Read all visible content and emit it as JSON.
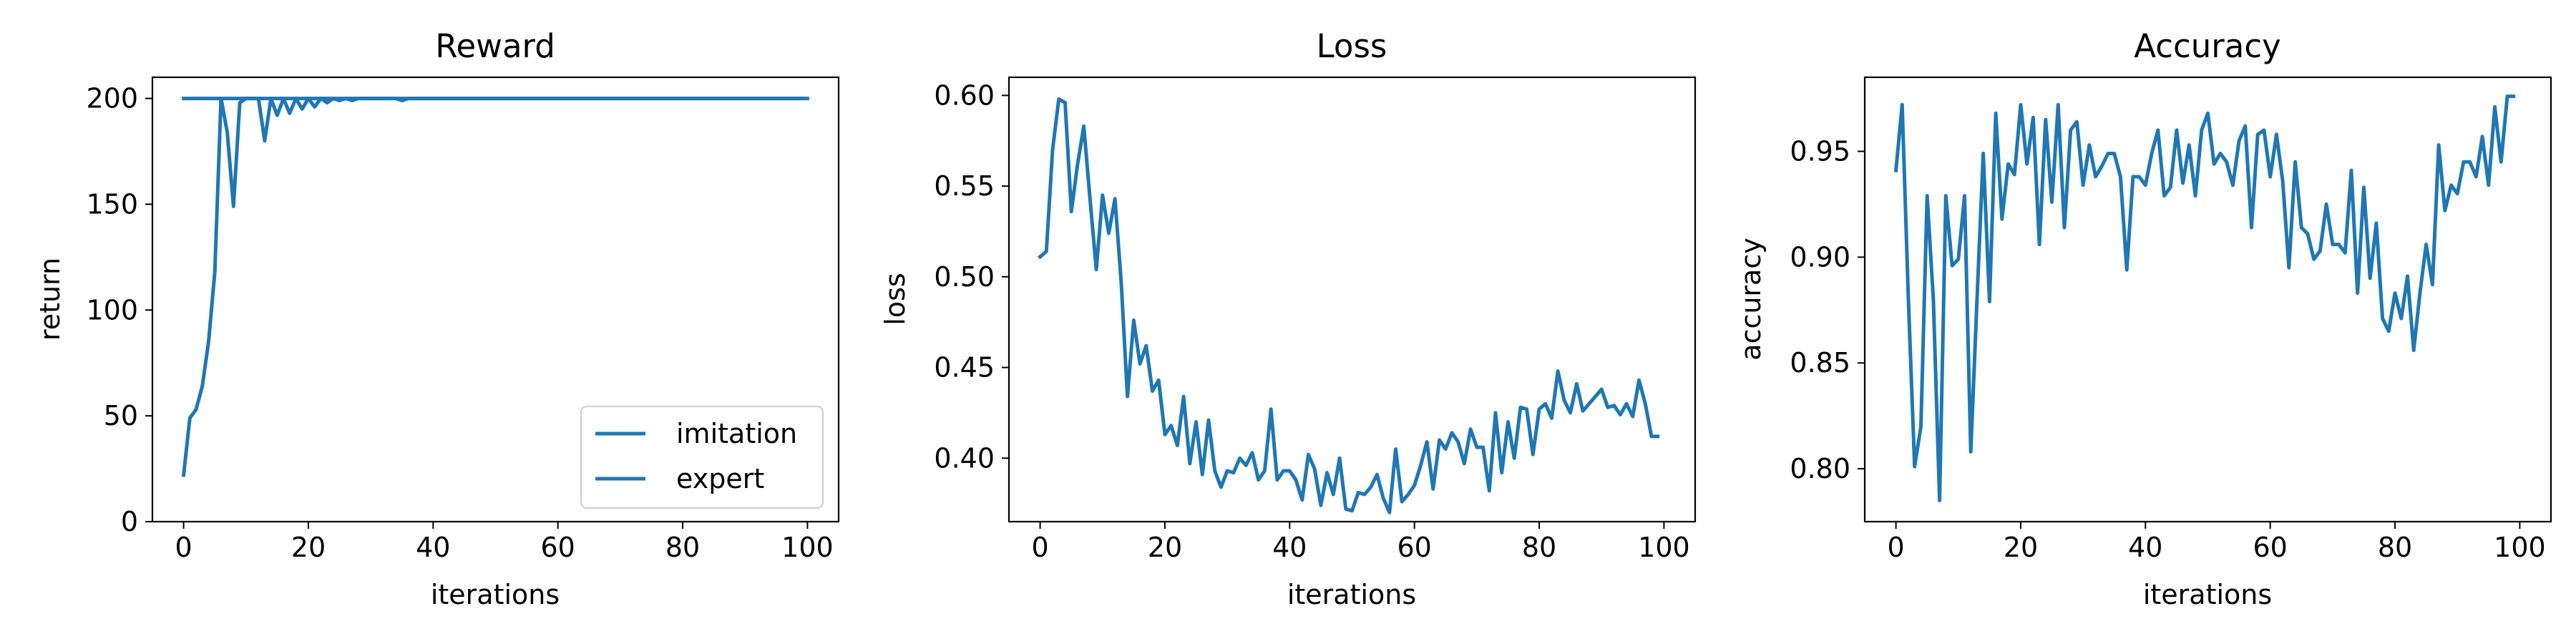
{
  "figure": {
    "line_color": "#1f77b4"
  },
  "chart_data": [
    {
      "type": "line",
      "title": "Reward",
      "xlabel": "iterations",
      "ylabel": "return",
      "xlim": [
        -5,
        105
      ],
      "ylim": [
        0,
        210
      ],
      "xticks": [
        0,
        20,
        40,
        60,
        80,
        100
      ],
      "yticks": [
        0,
        50,
        100,
        150,
        200
      ],
      "legend": {
        "placement": "lower-right",
        "labels": [
          "imitation",
          "expert"
        ]
      },
      "series": [
        {
          "name": "imitation",
          "x": [
            0,
            1,
            2,
            3,
            4,
            5,
            6,
            7,
            8,
            9,
            10,
            11,
            12,
            13,
            14,
            15,
            16,
            17,
            18,
            19,
            20,
            21,
            22,
            23,
            24,
            25,
            26,
            27,
            28,
            29,
            30,
            31,
            32,
            33,
            34,
            35,
            36,
            37,
            38,
            39,
            40,
            41,
            42,
            43,
            44,
            45,
            46,
            47,
            48,
            49,
            50,
            51,
            52,
            53,
            54,
            55,
            56,
            57,
            58,
            59,
            60,
            61,
            62,
            63,
            64,
            65,
            66,
            67,
            68,
            69,
            70,
            71,
            72,
            73,
            74,
            75,
            76,
            77,
            78,
            79,
            80,
            81,
            82,
            83,
            84,
            85,
            86,
            87,
            88,
            89,
            90,
            91,
            92,
            93,
            94,
            95,
            96,
            97,
            98,
            99
          ],
          "y": [
            22,
            49,
            53,
            64,
            85,
            118,
            200,
            184,
            149,
            198,
            200,
            200,
            200,
            180,
            200,
            192,
            200,
            193,
            200,
            195,
            200,
            196,
            200,
            198,
            200,
            199,
            200,
            199,
            200,
            200,
            200,
            200,
            200,
            200,
            200,
            199,
            200,
            200,
            200,
            200,
            200,
            200,
            200,
            200,
            200,
            200,
            200,
            200,
            200,
            200,
            200,
            200,
            200,
            200,
            200,
            200,
            200,
            200,
            200,
            200,
            200,
            200,
            200,
            200,
            200,
            200,
            200,
            200,
            200,
            200,
            200,
            200,
            200,
            200,
            200,
            200,
            200,
            200,
            200,
            200,
            200,
            200,
            200,
            200,
            200,
            200,
            200,
            200,
            200,
            200,
            200,
            200,
            200,
            200,
            200,
            200,
            200,
            200,
            200,
            200
          ]
        },
        {
          "name": "expert",
          "x": [
            0,
            100
          ],
          "y": [
            200,
            200
          ]
        }
      ]
    },
    {
      "type": "line",
      "title": "Loss",
      "xlabel": "iterations",
      "ylabel": "loss",
      "xlim": [
        -5,
        105
      ],
      "ylim": [
        0.365,
        0.61
      ],
      "xticks": [
        0,
        20,
        40,
        60,
        80,
        100
      ],
      "yticks": [
        0.4,
        0.45,
        0.5,
        0.55,
        0.6
      ],
      "ytick_labels": [
        "0.40",
        "0.45",
        "0.50",
        "0.55",
        "0.60"
      ],
      "series": [
        {
          "x": [
            0,
            1,
            2,
            3,
            4,
            5,
            6,
            7,
            8,
            9,
            10,
            11,
            12,
            13,
            14,
            15,
            16,
            17,
            18,
            19,
            20,
            21,
            22,
            23,
            24,
            25,
            26,
            27,
            28,
            29,
            30,
            31,
            32,
            33,
            34,
            35,
            36,
            37,
            38,
            39,
            40,
            41,
            42,
            43,
            44,
            45,
            46,
            47,
            48,
            49,
            50,
            51,
            52,
            53,
            54,
            55,
            56,
            57,
            58,
            59,
            60,
            61,
            62,
            63,
            64,
            65,
            66,
            67,
            68,
            69,
            70,
            71,
            72,
            73,
            74,
            75,
            76,
            77,
            78,
            79,
            80,
            81,
            82,
            83,
            84,
            85,
            86,
            87,
            88,
            89,
            90,
            91,
            92,
            93,
            94,
            95,
            96,
            97,
            98,
            99
          ],
          "y": [
            0.511,
            0.514,
            0.57,
            0.598,
            0.596,
            0.536,
            0.562,
            0.583,
            0.543,
            0.504,
            0.545,
            0.524,
            0.543,
            0.497,
            0.434,
            0.476,
            0.452,
            0.462,
            0.437,
            0.443,
            0.413,
            0.418,
            0.407,
            0.434,
            0.397,
            0.42,
            0.391,
            0.421,
            0.393,
            0.384,
            0.393,
            0.392,
            0.4,
            0.396,
            0.403,
            0.388,
            0.393,
            0.427,
            0.388,
            0.393,
            0.393,
            0.388,
            0.377,
            0.402,
            0.394,
            0.374,
            0.392,
            0.38,
            0.4,
            0.372,
            0.371,
            0.381,
            0.38,
            0.384,
            0.391,
            0.378,
            0.37,
            0.405,
            0.376,
            0.38,
            0.385,
            0.396,
            0.409,
            0.383,
            0.41,
            0.405,
            0.414,
            0.409,
            0.397,
            0.416,
            0.406,
            0.406,
            0.382,
            0.425,
            0.392,
            0.42,
            0.4,
            0.428,
            0.427,
            0.402,
            0.427,
            0.43,
            0.422,
            0.448,
            0.432,
            0.425,
            0.441,
            0.426,
            0.43,
            0.434,
            0.438,
            0.428,
            0.429,
            0.424,
            0.43,
            0.423,
            0.443,
            0.43,
            0.412,
            0.412
          ]
        }
      ]
    },
    {
      "type": "line",
      "title": "Accuracy",
      "xlabel": "iterations",
      "ylabel": "accuracy",
      "xlim": [
        -5,
        105
      ],
      "ylim": [
        0.775,
        0.985
      ],
      "xticks": [
        0,
        20,
        40,
        60,
        80,
        100
      ],
      "yticks": [
        0.8,
        0.85,
        0.9,
        0.95
      ],
      "ytick_labels": [
        "0.80",
        "0.85",
        "0.90",
        "0.95"
      ],
      "series": [
        {
          "x": [
            0,
            1,
            2,
            3,
            4,
            5,
            6,
            7,
            8,
            9,
            10,
            11,
            12,
            13,
            14,
            15,
            16,
            17,
            18,
            19,
            20,
            21,
            22,
            23,
            24,
            25,
            26,
            27,
            28,
            29,
            30,
            31,
            32,
            33,
            34,
            35,
            36,
            37,
            38,
            39,
            40,
            41,
            42,
            43,
            44,
            45,
            46,
            47,
            48,
            49,
            50,
            51,
            52,
            53,
            54,
            55,
            56,
            57,
            58,
            59,
            60,
            61,
            62,
            63,
            64,
            65,
            66,
            67,
            68,
            69,
            70,
            71,
            72,
            73,
            74,
            75,
            76,
            77,
            78,
            79,
            80,
            81,
            82,
            83,
            84,
            85,
            86,
            87,
            88,
            89,
            90,
            91,
            92,
            93,
            94,
            95,
            96,
            97,
            98,
            99
          ],
          "y": [
            0.941,
            0.972,
            0.88,
            0.801,
            0.82,
            0.929,
            0.88,
            0.785,
            0.929,
            0.896,
            0.899,
            0.929,
            0.808,
            0.88,
            0.949,
            0.879,
            0.968,
            0.918,
            0.944,
            0.939,
            0.972,
            0.944,
            0.966,
            0.906,
            0.965,
            0.926,
            0.972,
            0.914,
            0.96,
            0.964,
            0.934,
            0.953,
            0.938,
            0.943,
            0.949,
            0.949,
            0.938,
            0.894,
            0.938,
            0.938,
            0.934,
            0.949,
            0.96,
            0.929,
            0.933,
            0.96,
            0.935,
            0.953,
            0.929,
            0.96,
            0.968,
            0.944,
            0.949,
            0.945,
            0.934,
            0.955,
            0.962,
            0.914,
            0.958,
            0.96,
            0.938,
            0.958,
            0.936,
            0.895,
            0.945,
            0.914,
            0.911,
            0.899,
            0.903,
            0.925,
            0.906,
            0.906,
            0.902,
            0.941,
            0.883,
            0.933,
            0.89,
            0.916,
            0.871,
            0.865,
            0.883,
            0.871,
            0.891,
            0.856,
            0.883,
            0.906,
            0.887,
            0.953,
            0.922,
            0.934,
            0.93,
            0.945,
            0.945,
            0.938,
            0.957,
            0.934,
            0.971,
            0.945,
            0.976,
            0.976
          ]
        }
      ]
    }
  ]
}
